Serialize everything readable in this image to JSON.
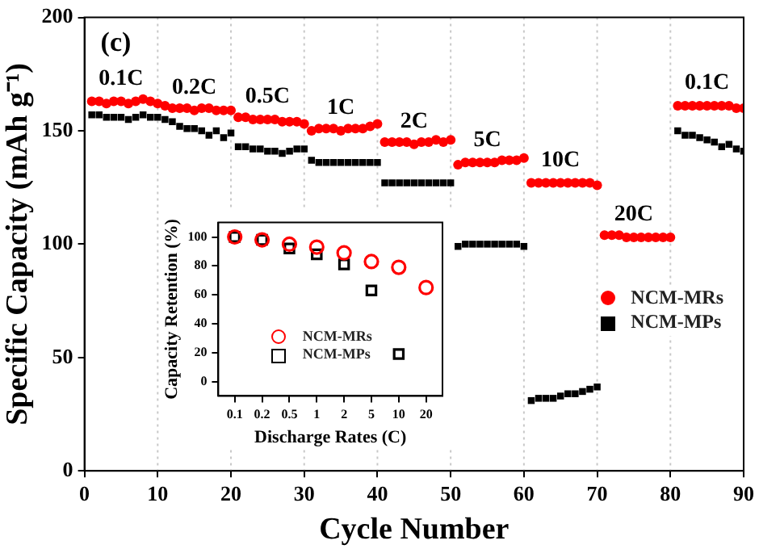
{
  "chart_data": [
    {
      "type": "scatter",
      "xlabel": "Cycle Number",
      "ylabel": "Specific Capacity (mAh g⁻¹)",
      "xlim": [
        0,
        90
      ],
      "xticks": [
        0,
        10,
        20,
        30,
        40,
        50,
        60,
        70,
        80,
        90
      ],
      "ylim": [
        0,
        200
      ],
      "yticks": [
        0,
        50,
        100,
        150,
        200
      ],
      "grid": false,
      "legend": "right",
      "x": [
        1,
        2,
        3,
        4,
        5,
        6,
        7,
        8,
        9,
        10,
        11,
        12,
        13,
        14,
        15,
        16,
        17,
        18,
        19,
        20,
        21,
        22,
        23,
        24,
        25,
        26,
        27,
        28,
        29,
        30,
        31,
        32,
        33,
        34,
        35,
        36,
        37,
        38,
        39,
        40,
        41,
        42,
        43,
        44,
        45,
        46,
        47,
        48,
        49,
        50,
        51,
        52,
        53,
        54,
        55,
        56,
        57,
        58,
        59,
        60,
        61,
        62,
        63,
        64,
        65,
        66,
        67,
        68,
        69,
        70,
        71,
        72,
        73,
        74,
        75,
        76,
        77,
        78,
        79,
        80,
        81,
        82,
        83,
        84,
        85,
        86,
        87,
        88,
        89,
        90
      ],
      "series": [
        {
          "name": "NCM-MRs",
          "color": "#ff0000",
          "marker": "circle",
          "values": [
            163,
            163,
            162,
            163,
            163,
            162,
            163,
            164,
            163,
            162,
            161,
            160,
            160,
            160,
            159,
            160,
            160,
            159,
            159,
            159,
            156,
            156,
            155,
            155,
            155,
            155,
            154,
            154,
            154,
            153,
            150,
            151,
            151,
            151,
            150,
            151,
            151,
            151,
            152,
            153,
            145,
            145,
            145,
            145,
            144,
            145,
            145,
            146,
            145,
            146,
            135,
            136,
            136,
            136,
            136,
            136,
            137,
            137,
            137,
            138,
            127,
            127,
            127,
            127,
            127,
            127,
            127,
            127,
            127,
            126,
            104,
            104,
            104,
            103,
            103,
            103,
            103,
            103,
            103,
            103,
            161,
            161,
            161,
            161,
            161,
            161,
            161,
            161,
            160,
            160
          ]
        },
        {
          "name": "NCM-MPs",
          "color": "#000000",
          "marker": "square",
          "values": [
            157,
            157,
            156,
            156,
            156,
            155,
            156,
            157,
            156,
            156,
            155,
            154,
            152,
            151,
            151,
            150,
            148,
            150,
            147,
            149,
            143,
            143,
            142,
            142,
            141,
            141,
            140,
            141,
            142,
            142,
            137,
            136,
            136,
            136,
            136,
            136,
            136,
            136,
            136,
            136,
            127,
            127,
            127,
            127,
            127,
            127,
            127,
            127,
            127,
            127,
            99,
            100,
            100,
            100,
            100,
            100,
            100,
            100,
            100,
            99,
            31,
            32,
            32,
            32,
            33,
            34,
            34,
            35,
            36,
            37,
            null,
            null,
            null,
            null,
            null,
            null,
            null,
            null,
            null,
            null,
            150,
            148,
            148,
            147,
            146,
            145,
            143,
            144,
            142,
            141
          ]
        }
      ],
      "ref_lines": [
        {
          "axis": "x",
          "value": 10,
          "color": "#c8c8c8",
          "line_style": "dotted"
        },
        {
          "axis": "x",
          "value": 20,
          "color": "#c8c8c8",
          "line_style": "dotted"
        },
        {
          "axis": "x",
          "value": 30,
          "color": "#c8c8c8",
          "line_style": "dotted"
        },
        {
          "axis": "x",
          "value": 40,
          "color": "#c8c8c8",
          "line_style": "dotted"
        },
        {
          "axis": "x",
          "value": 50,
          "color": "#c8c8c8",
          "line_style": "dotted"
        },
        {
          "axis": "x",
          "value": 60,
          "color": "#c8c8c8",
          "line_style": "dotted"
        },
        {
          "axis": "x",
          "value": 70,
          "color": "#c8c8c8",
          "line_style": "dotted"
        },
        {
          "axis": "x",
          "value": 80,
          "color": "#c8c8c8",
          "line_style": "dotted"
        }
      ],
      "annotations": [
        "(c)",
        {
          "text": "0.1C",
          "x": 5,
          "y": 163
        },
        {
          "text": "0.2C",
          "x": 15,
          "y": 159
        },
        {
          "text": "0.5C",
          "x": 25,
          "y": 155
        },
        {
          "text": "1C",
          "x": 35,
          "y": 150
        },
        {
          "text": "2C",
          "x": 45,
          "y": 144
        },
        {
          "text": "5C",
          "x": 55,
          "y": 136
        },
        {
          "text": "10C",
          "x": 65,
          "y": 127
        },
        {
          "text": "20C",
          "x": 75,
          "y": 103
        },
        {
          "text": "0.1C",
          "x": 85,
          "y": 161
        }
      ]
    },
    {
      "type": "scatter",
      "xlabel": "Discharge Rates (C)",
      "ylabel": "Capacity Retention (%)",
      "categories": [
        "0.1",
        "0.2",
        "0.5",
        "1",
        "2",
        "5",
        "10",
        "20"
      ],
      "ylim": [
        -10,
        110
      ],
      "yticks": [
        0,
        20,
        40,
        60,
        80,
        100
      ],
      "grid": false,
      "legend": "bottom",
      "series": [
        {
          "name": "NCM-MRs",
          "color": "#ff0000",
          "marker": "circle",
          "values": [
            100,
            98,
            95,
            93,
            89,
            83,
            79,
            65
          ]
        },
        {
          "name": "NCM-MPs",
          "color": "#000000",
          "marker": "square",
          "values": [
            100,
            98,
            92,
            88,
            81,
            63,
            19,
            null
          ]
        }
      ]
    }
  ]
}
